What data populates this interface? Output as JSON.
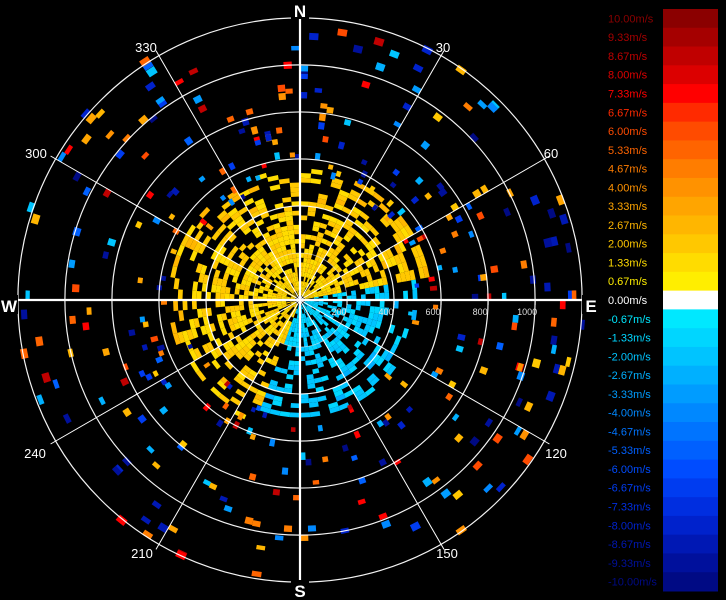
{
  "chart_data": {
    "type": "polar-radar-velocity",
    "cardinals": [
      "N",
      "E",
      "S",
      "W"
    ],
    "azimuth_labels": [
      "30",
      "60",
      "120",
      "150",
      "210",
      "240",
      "300",
      "330"
    ],
    "range_labels": [
      "200",
      "400",
      "600",
      "800",
      "1000"
    ],
    "range_rings": [
      200,
      400,
      600,
      800,
      1000,
      1200
    ],
    "range_max": 1225,
    "colorbar": {
      "labels": [
        "10.00m/s",
        "9.33m/s",
        "8.67m/s",
        "8.00m/s",
        "7.33m/s",
        "6.67m/s",
        "6.00m/s",
        "5.33m/s",
        "4.67m/s",
        "4.00m/s",
        "3.33m/s",
        "2.67m/s",
        "2.00m/s",
        "1.33m/s",
        "0.67m/s",
        "0.00m/s",
        "-0.67m/s",
        "-1.33m/s",
        "-2.00m/s",
        "-2.67m/s",
        "-3.33m/s",
        "-4.00m/s",
        "-4.67m/s",
        "-5.33m/s",
        "-6.00m/s",
        "-6.67m/s",
        "-7.33m/s",
        "-8.00m/s",
        "-8.67m/s",
        "-9.33m/s",
        "-10.00m/s"
      ],
      "colors": [
        "#8b0000",
        "#a50000",
        "#c00000",
        "#dc0000",
        "#ff0000",
        "#ff2a00",
        "#ff4b00",
        "#ff6400",
        "#ff7d00",
        "#ff9200",
        "#ffa500",
        "#ffb600",
        "#ffc800",
        "#ffdc00",
        "#ffee00",
        "#ffffff",
        "#00e8ff",
        "#00d6ff",
        "#00c4ff",
        "#00b0ff",
        "#009cff",
        "#0088ff",
        "#0074ff",
        "#0060ff",
        "#004cff",
        "#003cf0",
        "#002ee0",
        "#0022cc",
        "#0018b4",
        "#00109c",
        "#000a84"
      ]
    },
    "echo_core": {
      "approach_sector_deg": [
        200,
        80
      ],
      "approach_velocity_ms": [
        0.67,
        2.67
      ],
      "approach_range_max": 560,
      "recede_sector_deg": [
        80,
        200
      ],
      "recede_velocity_ms": [
        -0.67,
        -2.67
      ],
      "recede_range_max": 500
    }
  }
}
